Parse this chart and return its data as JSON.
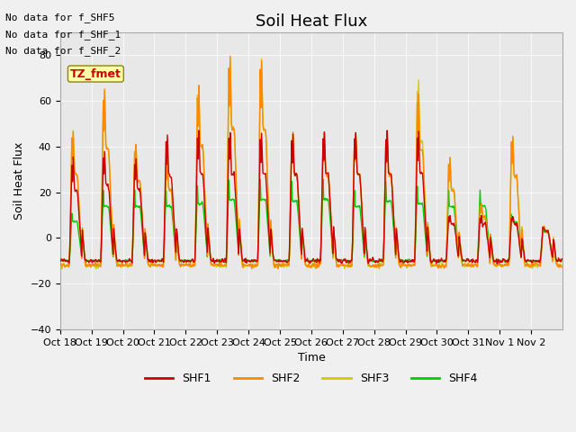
{
  "title": "Soil Heat Flux",
  "ylabel": "Soil Heat Flux",
  "xlabel": "Time",
  "xlabels": [
    "Oct 18",
    "Oct 19",
    "Oct 20",
    "Oct 21",
    "Oct 22",
    "Oct 23",
    "Oct 24",
    "Oct 25",
    "Oct 26",
    "Oct 27",
    "Oct 28",
    "Oct 29",
    "Oct 30",
    "Oct 31",
    "Nov 1",
    "Nov 2"
  ],
  "ylim": [
    -40,
    90
  ],
  "yticks": [
    -40,
    -20,
    0,
    20,
    40,
    60,
    80
  ],
  "bg_color": "#e8e8e8",
  "no_data_text": [
    "No data for f_SHF5",
    "No data for f_SHF_1",
    "No data for f_SHF_2"
  ],
  "tz_label": "TZ_fmet",
  "legend": [
    "SHF1",
    "SHF2",
    "SHF3",
    "SHF4"
  ],
  "colors": {
    "SHF1": "#cc0000",
    "SHF2": "#ff8800",
    "SHF3": "#cccc00",
    "SHF4": "#00cc00"
  },
  "line_width": 1.0,
  "n_days": 16
}
